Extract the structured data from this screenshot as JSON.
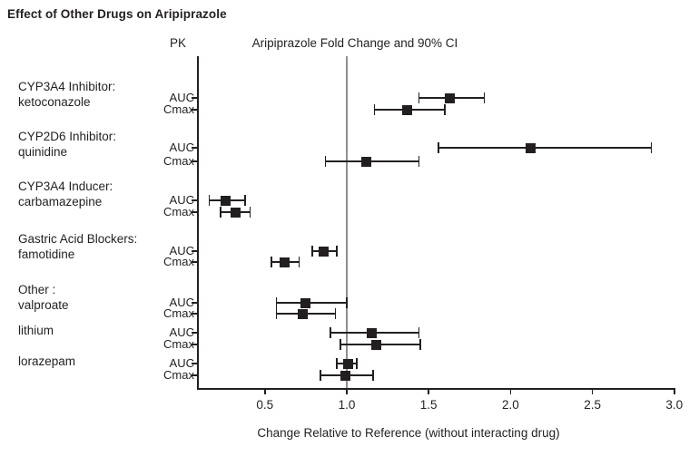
{
  "title": "Effect of Other Drugs on Aripiprazole",
  "chart_data": {
    "type": "scatter",
    "variant": "forest-plot",
    "pk_header": "PK",
    "plot_header": "Aripiprazole Fold Change and 90% CI",
    "xlabel": "Change Relative to Reference (without interacting drug)",
    "x_ticks": [
      0.5,
      1.0,
      1.5,
      2.0,
      2.5,
      3.0
    ],
    "x_tick_labels": [
      "0.5",
      "1.0",
      "1.5",
      "2.0",
      "2.5",
      "3.0"
    ],
    "xlim": [
      0.09,
      3.0
    ],
    "reference_line_x": 1.0,
    "grid": false,
    "legend": false,
    "marker": "filled-square",
    "ci_level": "90%",
    "groups": [
      {
        "category": "CYP3A4 Inhibitor:",
        "drug": "ketoconazole",
        "rows": [
          {
            "pk": "AUC",
            "estimate": 1.63,
            "ci_low": 1.44,
            "ci_high": 1.84
          },
          {
            "pk": "Cmax",
            "estimate": 1.37,
            "ci_low": 1.17,
            "ci_high": 1.6
          }
        ]
      },
      {
        "category": "CYP2D6 Inhibitor:",
        "drug": "quinidine",
        "rows": [
          {
            "pk": "AUC",
            "estimate": 2.12,
            "ci_low": 1.56,
            "ci_high": 2.86
          },
          {
            "pk": "Cmax",
            "estimate": 1.12,
            "ci_low": 0.87,
            "ci_high": 1.44
          }
        ]
      },
      {
        "category": "CYP3A4 Inducer:",
        "drug": "carbamazepine",
        "rows": [
          {
            "pk": "AUC",
            "estimate": 0.26,
            "ci_low": 0.16,
            "ci_high": 0.38
          },
          {
            "pk": "Cmax",
            "estimate": 0.32,
            "ci_low": 0.23,
            "ci_high": 0.41
          }
        ]
      },
      {
        "category": "Gastric Acid Blockers:",
        "drug": "famotidine",
        "rows": [
          {
            "pk": "AUC",
            "estimate": 0.86,
            "ci_low": 0.79,
            "ci_high": 0.94
          },
          {
            "pk": "Cmax",
            "estimate": 0.62,
            "ci_low": 0.54,
            "ci_high": 0.71
          }
        ]
      },
      {
        "category": "Other :",
        "drug": "valproate",
        "rows": [
          {
            "pk": "AUC",
            "estimate": 0.75,
            "ci_low": 0.57,
            "ci_high": 1.0
          },
          {
            "pk": "Cmax",
            "estimate": 0.73,
            "ci_low": 0.57,
            "ci_high": 0.93
          }
        ]
      },
      {
        "category": null,
        "drug": "lithium",
        "rows": [
          {
            "pk": "AUC",
            "estimate": 1.15,
            "ci_low": 0.9,
            "ci_high": 1.44
          },
          {
            "pk": "Cmax",
            "estimate": 1.18,
            "ci_low": 0.96,
            "ci_high": 1.45
          }
        ]
      },
      {
        "category": null,
        "drug": "lorazepam",
        "rows": [
          {
            "pk": "AUC",
            "estimate": 1.01,
            "ci_low": 0.94,
            "ci_high": 1.06
          },
          {
            "pk": "Cmax",
            "estimate": 0.99,
            "ci_low": 0.84,
            "ci_high": 1.16
          }
        ]
      }
    ],
    "colors": {
      "marker": "#231f20",
      "axis": "#231f20",
      "text": "#231f20",
      "reference_line": "#8f8f8f",
      "background": "#ffffff"
    }
  }
}
